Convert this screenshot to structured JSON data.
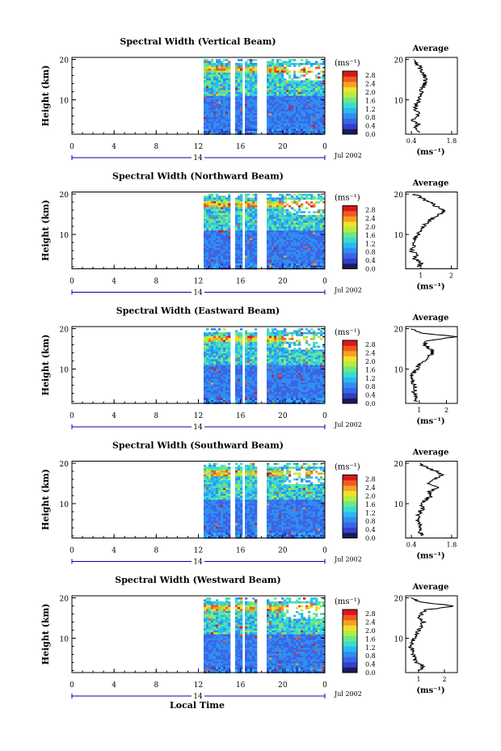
{
  "figure": {
    "x_axis_label": "Local Time",
    "height_label": "Height (km)",
    "units_label": "(ms⁻¹)",
    "average_title": "Average",
    "date_label": "Jul 2002",
    "day_label": "14",
    "colors": [
      "#1a1a5a",
      "#3040c8",
      "#3c64e6",
      "#2f8ef0",
      "#2cb8f0",
      "#3adcd0",
      "#6ae888",
      "#b4ec40",
      "#f0e030",
      "#f8a020",
      "#f05a20",
      "#d81818"
    ]
  },
  "chart_data": [
    {
      "type": "heatmap",
      "title": "Spectral Width (Vertical Beam)",
      "xlabel": "",
      "ylabel": "Height (km)",
      "x_ticks": [
        "0",
        "4",
        "8",
        "12",
        "16",
        "20",
        "0"
      ],
      "xlim_hours": [
        0,
        24
      ],
      "y_ticks": [
        "20",
        "10"
      ],
      "ylim_km": [
        1.5,
        20.5
      ],
      "data_start_hour": 12.5,
      "data_gaps_hours": [
        [
          15.0,
          15.5
        ],
        [
          16.2,
          16.5
        ],
        [
          17.5,
          18.5
        ]
      ],
      "colorbar": {
        "label": "(ms⁻¹)",
        "ticks": [
          "0.0",
          "0.4",
          "0.8",
          "1.2",
          "1.6",
          "2.0",
          "2.4",
          "2.8"
        ],
        "range": [
          0,
          3.0
        ]
      },
      "average_profile": {
        "title": "Average",
        "x_ticks": [
          "0.4",
          "1.8"
        ],
        "xlim": [
          0.2,
          2.0
        ],
        "xlabel": "(ms⁻¹)",
        "height_km": [
          2,
          3,
          4,
          5,
          6,
          7,
          8,
          9,
          10,
          11,
          12,
          13,
          14,
          15,
          16,
          17,
          18,
          19,
          20
        ],
        "values": [
          0.7,
          0.5,
          0.65,
          0.45,
          0.7,
          0.6,
          0.55,
          0.6,
          0.65,
          0.7,
          0.75,
          0.8,
          0.85,
          0.9,
          0.85,
          0.8,
          0.7,
          0.6,
          0.5
        ]
      }
    },
    {
      "type": "heatmap",
      "title": "Spectral Width (Northward Beam)",
      "xlabel": "",
      "ylabel": "Height (km)",
      "x_ticks": [
        "0",
        "4",
        "8",
        "12",
        "16",
        "20",
        "0"
      ],
      "xlim_hours": [
        0,
        24
      ],
      "y_ticks": [
        "20",
        "10"
      ],
      "ylim_km": [
        1.5,
        20.5
      ],
      "data_start_hour": 12.5,
      "data_gaps_hours": [
        [
          15.0,
          15.5
        ],
        [
          16.2,
          16.5
        ],
        [
          17.5,
          18.5
        ]
      ],
      "colorbar": {
        "label": "(ms⁻¹)",
        "ticks": [
          "0.0",
          "0.4",
          "0.8",
          "1.2",
          "1.6",
          "2.0",
          "2.4",
          "2.8"
        ],
        "range": [
          0,
          3.0
        ]
      },
      "average_profile": {
        "title": "Average",
        "x_ticks": [
          "1",
          "2"
        ],
        "xlim": [
          0.5,
          2.2
        ],
        "xlabel": "(ms⁻¹)",
        "height_km": [
          2,
          3,
          4,
          5,
          6,
          7,
          8,
          9,
          10,
          11,
          12,
          13,
          14,
          15,
          16,
          17,
          18,
          19,
          20
        ],
        "values": [
          0.9,
          1.0,
          0.8,
          0.85,
          0.7,
          0.75,
          0.8,
          0.85,
          0.9,
          1.0,
          1.1,
          1.2,
          1.4,
          1.6,
          1.8,
          1.5,
          1.3,
          1.0,
          0.8
        ]
      }
    },
    {
      "type": "heatmap",
      "title": "Spectral Width (Eastward Beam)",
      "xlabel": "",
      "ylabel": "Height (km)",
      "x_ticks": [
        "0",
        "4",
        "8",
        "12",
        "16",
        "20",
        "0"
      ],
      "xlim_hours": [
        0,
        24
      ],
      "y_ticks": [
        "20",
        "10"
      ],
      "ylim_km": [
        1.5,
        20.5
      ],
      "data_start_hour": 12.5,
      "data_gaps_hours": [
        [
          15.0,
          15.5
        ],
        [
          16.2,
          16.5
        ],
        [
          17.5,
          18.5
        ]
      ],
      "colorbar": {
        "label": "(ms⁻¹)",
        "ticks": [
          "0.0",
          "0.4",
          "0.8",
          "1.2",
          "1.6",
          "2.0",
          "2.4",
          "2.8"
        ],
        "range": [
          0,
          3.0
        ]
      },
      "average_profile": {
        "title": "Average",
        "x_ticks": [
          "1",
          "2"
        ],
        "xlim": [
          0.5,
          2.4
        ],
        "xlabel": "(ms⁻¹)",
        "height_km": [
          2,
          3,
          4,
          5,
          6,
          7,
          8,
          9,
          10,
          11,
          12,
          13,
          14,
          15,
          16,
          17,
          18,
          19,
          20
        ],
        "values": [
          0.9,
          0.85,
          0.8,
          0.85,
          0.8,
          0.75,
          0.75,
          0.8,
          0.9,
          1.0,
          1.2,
          1.3,
          1.5,
          1.4,
          1.2,
          1.3,
          2.3,
          1.0,
          0.7
        ]
      }
    },
    {
      "type": "heatmap",
      "title": "Spectral Width (Southward Beam)",
      "xlabel": "",
      "ylabel": "Height (km)",
      "x_ticks": [
        "0",
        "4",
        "8",
        "12",
        "16",
        "20",
        "0"
      ],
      "xlim_hours": [
        0,
        24
      ],
      "y_ticks": [
        "20",
        "10"
      ],
      "ylim_km": [
        1.5,
        20.5
      ],
      "data_start_hour": 12.5,
      "data_gaps_hours": [
        [
          15.0,
          15.5
        ],
        [
          16.2,
          16.5
        ],
        [
          17.5,
          18.5
        ]
      ],
      "colorbar": {
        "label": "(ms⁻¹)",
        "ticks": [
          "0.0",
          "0.4",
          "0.8",
          "1.2",
          "1.6",
          "2.0",
          "2.4",
          "2.8"
        ],
        "range": [
          0,
          3.0
        ]
      },
      "average_profile": {
        "title": "Average",
        "x_ticks": [
          "0.4",
          "1.8"
        ],
        "xlim": [
          0.2,
          2.0
        ],
        "xlabel": "(ms⁻¹)",
        "height_km": [
          2,
          3,
          4,
          5,
          6,
          7,
          8,
          9,
          10,
          11,
          12,
          13,
          14,
          15,
          16,
          17,
          18,
          19,
          20
        ],
        "values": [
          0.8,
          0.7,
          0.75,
          0.65,
          0.6,
          0.65,
          0.7,
          0.8,
          0.75,
          0.9,
          1.1,
          1.0,
          1.3,
          1.0,
          1.2,
          1.5,
          1.3,
          0.9,
          0.7
        ]
      }
    },
    {
      "type": "heatmap",
      "title": "Spectral Width (Westward Beam)",
      "xlabel": "Local Time",
      "ylabel": "Height (km)",
      "x_ticks": [
        "0",
        "4",
        "8",
        "12",
        "16",
        "20",
        "0"
      ],
      "xlim_hours": [
        0,
        24
      ],
      "y_ticks": [
        "20",
        "10"
      ],
      "ylim_km": [
        1.5,
        20.5
      ],
      "data_start_hour": 12.5,
      "data_gaps_hours": [
        [
          15.0,
          15.5
        ],
        [
          16.2,
          16.5
        ],
        [
          17.5,
          18.5
        ]
      ],
      "colorbar": {
        "label": "(ms⁻¹)",
        "ticks": [
          "0.0",
          "0.4",
          "0.8",
          "1.2",
          "1.6",
          "2.0",
          "2.4",
          "2.8"
        ],
        "range": [
          0,
          3.0
        ]
      },
      "average_profile": {
        "title": "Average",
        "x_ticks": [
          "1",
          "2"
        ],
        "xlim": [
          0.5,
          2.5
        ],
        "xlabel": "(ms⁻¹)",
        "height_km": [
          2,
          3,
          4,
          5,
          6,
          7,
          8,
          9,
          10,
          11,
          12,
          13,
          14,
          15,
          16,
          17,
          18,
          19,
          20
        ],
        "values": [
          1.0,
          1.2,
          0.9,
          0.85,
          0.8,
          0.75,
          0.7,
          0.8,
          0.85,
          0.9,
          1.0,
          1.1,
          1.2,
          1.0,
          1.1,
          1.3,
          2.4,
          1.0,
          0.7
        ]
      }
    }
  ]
}
